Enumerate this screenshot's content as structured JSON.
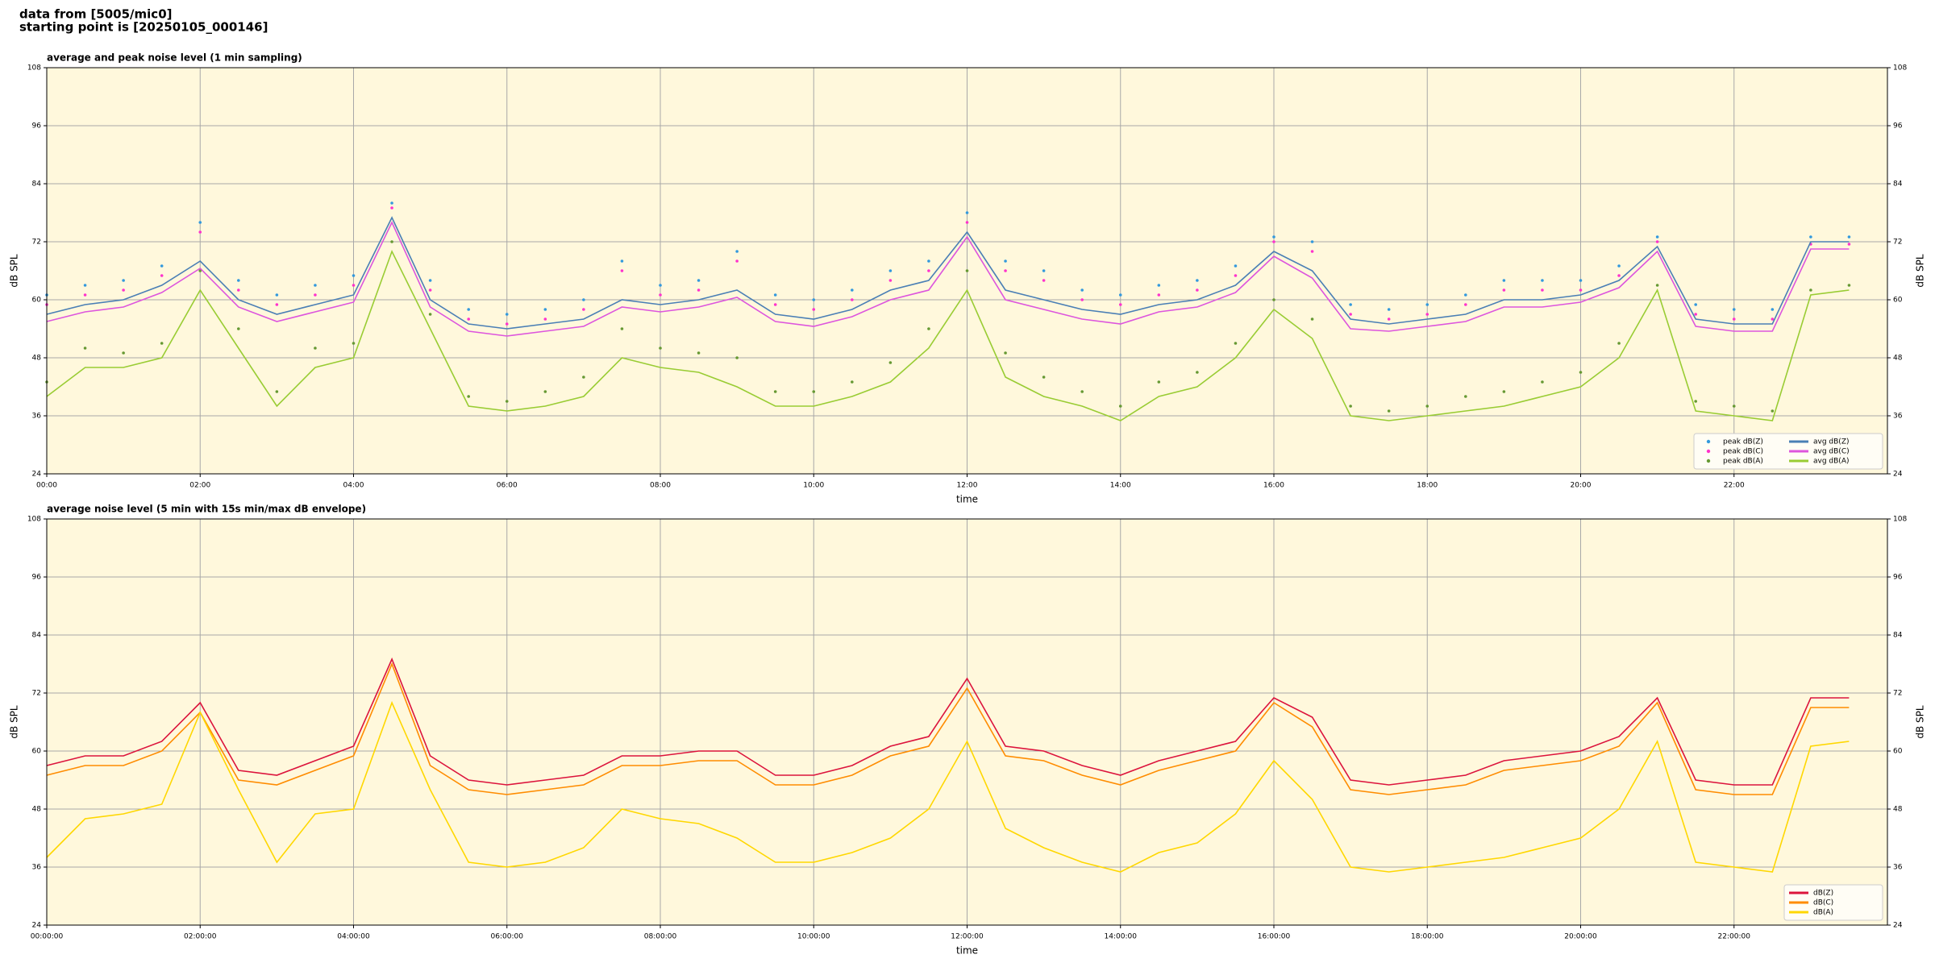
{
  "header": {
    "line1": "data from [5005/mic0]",
    "line2": "starting point is [20250105_000146]"
  },
  "chart_data": [
    {
      "type": "line",
      "title": "average and peak noise level (1 min sampling)",
      "xlabel": "time",
      "ylabel": "dB SPL",
      "xlim": [
        0,
        24
      ],
      "ylim": [
        24,
        108
      ],
      "xticks": [
        {
          "value": 0,
          "label": "00:00"
        },
        {
          "value": 2,
          "label": "02:00"
        },
        {
          "value": 4,
          "label": "04:00"
        },
        {
          "value": 6,
          "label": "06:00"
        },
        {
          "value": 8,
          "label": "08:00"
        },
        {
          "value": 10,
          "label": "10:00"
        },
        {
          "value": 12,
          "label": "12:00"
        },
        {
          "value": 14,
          "label": "14:00"
        },
        {
          "value": 16,
          "label": "16:00"
        },
        {
          "value": 18,
          "label": "18:00"
        },
        {
          "value": 20,
          "label": "20:00"
        },
        {
          "value": 22,
          "label": "22:00"
        }
      ],
      "yticks": [
        24,
        36,
        48,
        60,
        72,
        84,
        96,
        108
      ],
      "grid": true,
      "legend": "lower right",
      "legend_columns": 2,
      "x": [
        0,
        0.5,
        1,
        1.5,
        2,
        2.5,
        3,
        3.5,
        4,
        4.5,
        5,
        5.5,
        6,
        6.5,
        7,
        7.5,
        8,
        8.5,
        9,
        9.5,
        10,
        10.5,
        11,
        11.5,
        12,
        12.5,
        13,
        13.5,
        14,
        14.5,
        15,
        15.5,
        16,
        16.5,
        17,
        17.5,
        18,
        18.5,
        19,
        19.5,
        20,
        20.5,
        21,
        21.5,
        22,
        22.5,
        23,
        23.5
      ],
      "series": [
        {
          "name": "peak dB(Z)",
          "type": "scatter",
          "color": "#3399dd",
          "values": [
            61,
            63,
            64,
            67,
            76,
            64,
            61,
            63,
            65,
            80,
            64,
            58,
            57,
            58,
            60,
            68,
            63,
            64,
            70,
            61,
            60,
            62,
            66,
            68,
            78,
            68,
            66,
            62,
            61,
            63,
            64,
            67,
            73,
            72,
            59,
            58,
            59,
            61,
            64,
            64,
            64,
            67,
            73,
            59,
            58,
            58,
            73,
            73
          ]
        },
        {
          "name": "peak dB(C)",
          "type": "scatter",
          "color": "#ff33cc",
          "values": [
            59,
            61,
            62,
            65,
            74,
            62,
            59,
            61,
            63,
            79,
            62,
            56,
            55,
            56,
            58,
            66,
            61,
            62,
            68,
            59,
            58,
            60,
            64,
            66,
            76,
            66,
            64,
            60,
            59,
            61,
            62,
            65,
            72,
            70,
            57,
            56,
            57,
            59,
            62,
            62,
            62,
            65,
            72,
            57,
            56,
            56,
            71.5,
            71.5
          ]
        },
        {
          "name": "peak dB(A)",
          "type": "scatter",
          "color": "#669933",
          "values": [
            43,
            50,
            49,
            51,
            66,
            54,
            41,
            50,
            51,
            72,
            57,
            40,
            39,
            41,
            44,
            54,
            50,
            49,
            48,
            41,
            41,
            43,
            47,
            54,
            66,
            49,
            44,
            41,
            38,
            43,
            45,
            51,
            60,
            56,
            38,
            37,
            38,
            40,
            41,
            43,
            45,
            51,
            63,
            39,
            38,
            37,
            62,
            63
          ]
        },
        {
          "name": "avg dB(Z)",
          "type": "line",
          "color": "#4a7fb5",
          "values": [
            57,
            59,
            60,
            63,
            68,
            60,
            57,
            59,
            61,
            77,
            60,
            55,
            54,
            55,
            56,
            60,
            59,
            60,
            62,
            57,
            56,
            58,
            62,
            64,
            74,
            62,
            60,
            58,
            57,
            59,
            60,
            63,
            70,
            66,
            56,
            55,
            56,
            57,
            60,
            60,
            61,
            64,
            71,
            56,
            55,
            55,
            72,
            72
          ]
        },
        {
          "name": "avg dB(C)",
          "type": "line",
          "color": "#dd55dd",
          "values": [
            55.5,
            57.5,
            58.5,
            61.5,
            66.5,
            58.5,
            55.5,
            57.5,
            59.5,
            76,
            58.5,
            53.5,
            52.5,
            53.5,
            54.5,
            58.5,
            57.5,
            58.5,
            60.5,
            55.5,
            54.5,
            56.5,
            60,
            62,
            73,
            60,
            58,
            56,
            55,
            57.5,
            58.5,
            61.5,
            69,
            64.5,
            54,
            53.5,
            54.5,
            55.5,
            58.5,
            58.5,
            59.5,
            62.5,
            70,
            54.5,
            53.5,
            53.5,
            70.5,
            70.5
          ]
        },
        {
          "name": "avg dB(A)",
          "type": "line",
          "color": "#99cc33",
          "values": [
            40,
            46,
            46,
            48,
            62,
            50,
            38,
            46,
            48,
            70,
            54,
            38,
            37,
            38,
            40,
            48,
            46,
            45,
            42,
            38,
            38,
            40,
            43,
            50,
            62,
            44,
            40,
            38,
            35,
            40,
            42,
            48,
            58,
            52,
            36,
            35,
            36,
            37,
            38,
            40,
            42,
            48,
            62,
            37,
            36,
            35,
            61,
            62
          ]
        }
      ]
    },
    {
      "type": "line",
      "title": "average noise level (5 min with 15s min/max dB envelope)",
      "xlabel": "time",
      "ylabel": "dB SPL",
      "xlim": [
        0,
        24
      ],
      "ylim": [
        24,
        108
      ],
      "xticks": [
        {
          "value": 0,
          "label": "00:00:00"
        },
        {
          "value": 2,
          "label": "02:00:00"
        },
        {
          "value": 4,
          "label": "04:00:00"
        },
        {
          "value": 6,
          "label": "06:00:00"
        },
        {
          "value": 8,
          "label": "08:00:00"
        },
        {
          "value": 10,
          "label": "10:00:00"
        },
        {
          "value": 12,
          "label": "12:00:00"
        },
        {
          "value": 14,
          "label": "14:00:00"
        },
        {
          "value": 16,
          "label": "16:00:00"
        },
        {
          "value": 18,
          "label": "18:00:00"
        },
        {
          "value": 20,
          "label": "20:00:00"
        },
        {
          "value": 22,
          "label": "22:00:00"
        }
      ],
      "yticks": [
        24,
        36,
        48,
        60,
        72,
        84,
        96,
        108
      ],
      "grid": true,
      "legend": "lower right",
      "legend_columns": 1,
      "x": [
        0,
        0.5,
        1,
        1.5,
        2,
        2.5,
        3,
        3.5,
        4,
        4.5,
        5,
        5.5,
        6,
        6.5,
        7,
        7.5,
        8,
        8.5,
        9,
        9.5,
        10,
        10.5,
        11,
        11.5,
        12,
        12.5,
        13,
        13.5,
        14,
        14.5,
        15,
        15.5,
        16,
        16.5,
        17,
        17.5,
        18,
        18.5,
        19,
        19.5,
        20,
        20.5,
        21,
        21.5,
        22,
        22.5,
        23,
        23.5
      ],
      "series": [
        {
          "name": "dB(Z)",
          "type": "line",
          "color": "#dc143c",
          "values": [
            57,
            59,
            59,
            62,
            70,
            56,
            55,
            58,
            61,
            79,
            59,
            54,
            53,
            54,
            55,
            59,
            59,
            60,
            60,
            55,
            55,
            57,
            61,
            63,
            75,
            61,
            60,
            57,
            55,
            58,
            60,
            62,
            71,
            67,
            54,
            53,
            54,
            55,
            58,
            59,
            60,
            63,
            71,
            54,
            53,
            53,
            71,
            71
          ]
        },
        {
          "name": "dB(C)",
          "type": "line",
          "color": "#ff8c00",
          "values": [
            55,
            57,
            57,
            60,
            68,
            54,
            53,
            56,
            59,
            78,
            57,
            52,
            51,
            52,
            53,
            57,
            57,
            58,
            58,
            53,
            53,
            55,
            59,
            61,
            73,
            59,
            58,
            55,
            53,
            56,
            58,
            60,
            70,
            65,
            52,
            51,
            52,
            53,
            56,
            57,
            58,
            61,
            70,
            52,
            51,
            51,
            69,
            69
          ]
        },
        {
          "name": "dB(A)",
          "type": "line",
          "color": "#ffd700",
          "values": [
            38,
            46,
            47,
            49,
            68,
            52,
            37,
            47,
            48,
            70,
            52,
            37,
            36,
            37,
            40,
            48,
            46,
            45,
            42,
            37,
            37,
            39,
            42,
            48,
            62,
            44,
            40,
            37,
            35,
            39,
            41,
            47,
            58,
            50,
            36,
            35,
            36,
            37,
            38,
            40,
            42,
            48,
            62,
            37,
            36,
            35,
            61,
            62
          ]
        }
      ]
    }
  ]
}
